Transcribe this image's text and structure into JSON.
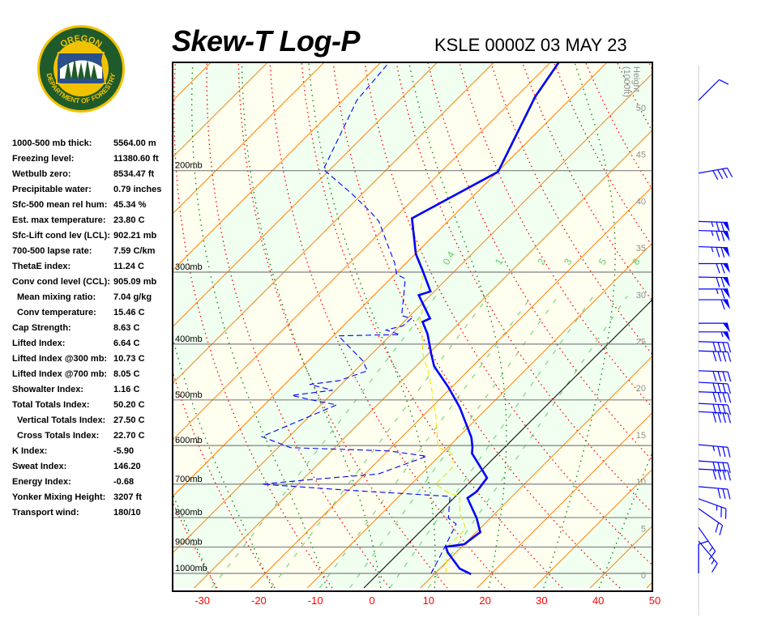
{
  "header": {
    "title": "Skew-T Log-P",
    "subtitle": "KSLE 0000Z 03 MAY 23"
  },
  "logo": {
    "top_text": "OREGON",
    "bottom_text": "DEPARTMENT OF FORESTRY",
    "colors": {
      "green": "#1f5a2a",
      "gold": "#f2c200",
      "blue": "#2a4f8a"
    }
  },
  "stats": [
    {
      "label": "1000-500 mb thick:",
      "value": "5564.00 m"
    },
    {
      "label": "Freezing level:",
      "value": "11380.60 ft"
    },
    {
      "label": "Wetbulb zero:",
      "value": "8534.47 ft"
    },
    {
      "label": "Precipitable water:",
      "value": "0.79 inches"
    },
    {
      "label": "Sfc-500 mean rel hum:",
      "value": "45.34 %"
    },
    {
      "label": "Est. max temperature:",
      "value": "23.80 C"
    },
    {
      "label": "Sfc-Lift cond lev (LCL):",
      "value": "902.21 mb"
    },
    {
      "label": "700-500 lapse rate:",
      "value": "7.59 C/km"
    },
    {
      "label": "ThetaE index:",
      "value": "11.24 C"
    },
    {
      "label": "Conv cond level (CCL):",
      "value": "905.09 mb"
    },
    {
      "label": "Mean mixing ratio:",
      "value": "7.04 g/kg",
      "indent": true
    },
    {
      "label": "Conv temperature:",
      "value": "15.46 C",
      "indent": true
    },
    {
      "label": "Cap Strength:",
      "value": "8.63 C"
    },
    {
      "label": "Lifted Index:",
      "value": "6.64 C"
    },
    {
      "label": "Lifted Index @300 mb:",
      "value": "10.73 C"
    },
    {
      "label": "Lifted Index @700 mb:",
      "value": "8.05 C"
    },
    {
      "label": "Showalter Index:",
      "value": "1.16 C"
    },
    {
      "label": "Total Totals Index:",
      "value": "50.20 C"
    },
    {
      "label": "Vertical Totals Index:",
      "value": "27.50 C",
      "indent": true
    },
    {
      "label": "Cross Totals Index:",
      "value": "22.70 C",
      "indent": true
    },
    {
      "label": "K Index:",
      "value": "-5.90"
    },
    {
      "label": "Sweat Index:",
      "value": "146.20"
    },
    {
      "label": "Energy Index:",
      "value": "-0.68"
    },
    {
      "label": "Yonker Mixing Height:",
      "value": "3207 ft"
    },
    {
      "label": "Transport wind:",
      "value": "180/10"
    }
  ],
  "chart_data": {
    "type": "line",
    "subtype": "skew-t log-p",
    "x_axis": {
      "unit": "C",
      "ticks": [
        -30,
        -20,
        -10,
        0,
        10,
        20,
        30,
        40,
        50
      ],
      "range": [
        -30,
        50
      ]
    },
    "pressure_axis": {
      "scale": "log",
      "range": [
        1050,
        130
      ],
      "levels": [
        200,
        300,
        400,
        500,
        600,
        700,
        800,
        900,
        1000
      ],
      "labels": [
        "200mb",
        "300mb",
        "400mb",
        "500mb",
        "600mb",
        "700mb",
        "800mb",
        "900mb",
        "1000mb"
      ]
    },
    "height_axis": {
      "title": "Height",
      "unit": "(1000ft)",
      "ticks": [
        0,
        5,
        10,
        15,
        20,
        25,
        30,
        35,
        40,
        45,
        50
      ]
    },
    "mixing_ratio_labels": [
      "0.4",
      "1",
      "2",
      "3",
      "5",
      "8"
    ],
    "mixing_ratio_values": [
      0.4,
      1,
      2,
      3,
      5,
      8
    ],
    "isotherm_step": 10,
    "highlight_isotherm": 0,
    "colors": {
      "temperature": "#0000ff",
      "dewpoint": "#0000ff",
      "parcel": "#e8e800",
      "isotherm": "#ff8000",
      "zero_isotherm": "#000000",
      "dry_adiabat": "#ff0000",
      "moist_adiabat": "#008000",
      "mixing_ratio": "#66cc66",
      "isobar": "#808080",
      "band_a": "#fffff0",
      "band_b": "#f0fff0",
      "x_tick_labels": "#ff0000",
      "wind": "#0000ff"
    },
    "series": [
      {
        "key": "temperature",
        "style": "solid-thick",
        "points": [
          [
            1003,
            16.5
          ],
          [
            981,
            13.5
          ],
          [
            919,
            8.5
          ],
          [
            899,
            7.2
          ],
          [
            890,
            10.0
          ],
          [
            848,
            10.7
          ],
          [
            802,
            7.6
          ],
          [
            740,
            2.4
          ],
          [
            721,
            2.9
          ],
          [
            683,
            2.3
          ],
          [
            661,
            0.0
          ],
          [
            619,
            -4.7
          ],
          [
            604,
            -5.7
          ],
          [
            581,
            -7.6
          ],
          [
            515,
            -15.0
          ],
          [
            475,
            -20.6
          ],
          [
            437,
            -26.8
          ],
          [
            416,
            -29.5
          ],
          [
            384,
            -33.7
          ],
          [
            366,
            -36.7
          ],
          [
            361,
            -36.0
          ],
          [
            329,
            -42.1
          ],
          [
            324,
            -40.7
          ],
          [
            299,
            -45.6
          ],
          [
            279,
            -49.9
          ],
          [
            242,
            -56.9
          ],
          [
            201,
            -49.9
          ],
          [
            149,
            -56.6
          ],
          [
            130,
            -58.5
          ]
        ]
      },
      {
        "key": "dewpoint",
        "style": "dashed",
        "points": [
          [
            1000,
            9.3
          ],
          [
            953,
            8.3
          ],
          [
            893,
            6.9
          ],
          [
            821,
            5.0
          ],
          [
            802,
            2.6
          ],
          [
            735,
            -1.0
          ],
          [
            717,
            -20.3
          ],
          [
            700,
            -36.4
          ],
          [
            689,
            -29.7
          ],
          [
            672,
            -17.6
          ],
          [
            626,
            -12.2
          ],
          [
            613,
            -19.8
          ],
          [
            605,
            -37.8
          ],
          [
            579,
            -44.8
          ],
          [
            510,
            -37.2
          ],
          [
            499,
            -43.0
          ],
          [
            491,
            -46.8
          ],
          [
            481,
            -40.5
          ],
          [
            470,
            -45.6
          ],
          [
            463,
            -41.1
          ],
          [
            445,
            -37.8
          ],
          [
            427,
            -40.5
          ],
          [
            387,
            -49.1
          ],
          [
            385,
            -38.5
          ],
          [
            378,
            -41.7
          ],
          [
            372,
            -39.5
          ],
          [
            361,
            -39.3
          ],
          [
            357,
            -41.5
          ],
          [
            326,
            -45.1
          ],
          [
            308,
            -47.4
          ],
          [
            303,
            -49.6
          ],
          [
            289,
            -52.1
          ],
          [
            273,
            -55.6
          ],
          [
            245,
            -62.2
          ],
          [
            236,
            -65.3
          ],
          [
            220,
            -71.6
          ],
          [
            199,
            -81.2
          ],
          [
            151,
            -87.5
          ],
          [
            130,
            -88.5
          ]
        ]
      },
      {
        "key": "parcel",
        "style": "dashed",
        "points": [
          [
            1000,
            11.9
          ],
          [
            899,
            7.4
          ],
          [
            837,
            7.6
          ],
          [
            784,
            3.6
          ],
          [
            733,
            0.6
          ],
          [
            728,
            -1.4
          ],
          [
            700,
            -5.7
          ],
          [
            678,
            -5.6
          ],
          [
            654,
            -5.7
          ],
          [
            624,
            -7.6
          ],
          [
            613,
            -9.3
          ],
          [
            605,
            -11.7
          ],
          [
            532,
            -17.8
          ],
          [
            502,
            -20.8
          ],
          [
            473,
            -23.8
          ],
          [
            444,
            -27.2
          ],
          [
            420,
            -30.5
          ],
          [
            381,
            -35.1
          ],
          [
            366,
            -37.2
          ],
          [
            346,
            -39.1
          ],
          [
            329,
            -42.0
          ],
          [
            299,
            -45.4
          ],
          [
            279,
            -49.7
          ],
          [
            242,
            -56.7
          ],
          [
            201,
            -49.7
          ],
          [
            149,
            -56.4
          ],
          [
            130,
            -58.3
          ]
        ]
      }
    ],
    "wind_barbs": [
      {
        "p": 151,
        "dir": 225,
        "spd": 10
      },
      {
        "p": 202,
        "dir": 260,
        "spd": 40
      },
      {
        "p": 245,
        "dir": 272,
        "spd": 75
      },
      {
        "p": 254,
        "dir": 272,
        "spd": 75
      },
      {
        "p": 271,
        "dir": 272,
        "spd": 75
      },
      {
        "p": 290,
        "dir": 270,
        "spd": 70
      },
      {
        "p": 306,
        "dir": 271,
        "spd": 70
      },
      {
        "p": 321,
        "dir": 270,
        "spd": 65
      },
      {
        "p": 335,
        "dir": 270,
        "spd": 60
      },
      {
        "p": 368,
        "dir": 270,
        "spd": 50
      },
      {
        "p": 381,
        "dir": 270,
        "spd": 55
      },
      {
        "p": 396,
        "dir": 272,
        "spd": 40
      },
      {
        "p": 411,
        "dir": 272,
        "spd": 40
      },
      {
        "p": 445,
        "dir": 272,
        "spd": 40
      },
      {
        "p": 466,
        "dir": 273,
        "spd": 40
      },
      {
        "p": 484,
        "dir": 272,
        "spd": 40
      },
      {
        "p": 507,
        "dir": 273,
        "spd": 40
      },
      {
        "p": 524,
        "dir": 273,
        "spd": 40
      },
      {
        "p": 598,
        "dir": 275,
        "spd": 35
      },
      {
        "p": 638,
        "dir": 274,
        "spd": 40
      },
      {
        "p": 659,
        "dir": 273,
        "spd": 40
      },
      {
        "p": 707,
        "dir": 275,
        "spd": 30
      },
      {
        "p": 742,
        "dir": 290,
        "spd": 25
      },
      {
        "p": 772,
        "dir": 305,
        "spd": 20
      },
      {
        "p": 832,
        "dir": 325,
        "spd": 15
      },
      {
        "p": 879,
        "dir": 320,
        "spd": 15
      },
      {
        "p": 1000,
        "dir": 180,
        "spd": 10
      }
    ]
  }
}
